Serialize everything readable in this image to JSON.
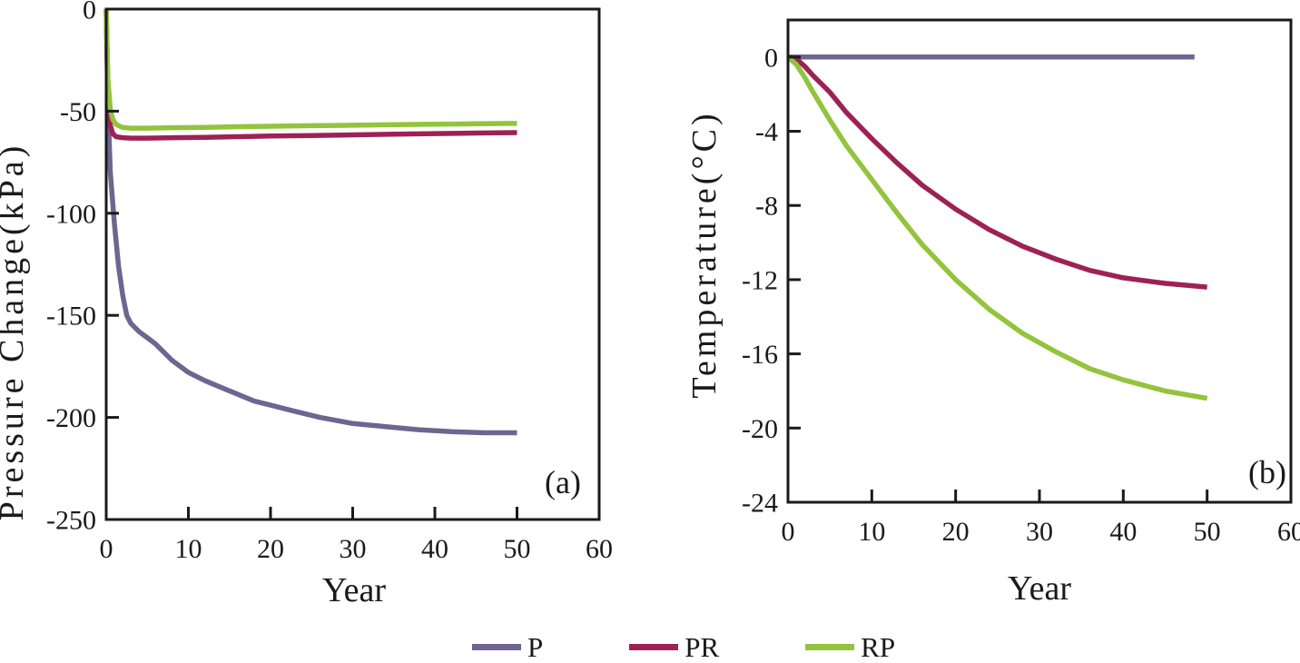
{
  "figure": {
    "background": "#ffffff",
    "axis_color": "#1a1a1a"
  },
  "legend": {
    "items": [
      {
        "label": "P",
        "color": "#6e6590"
      },
      {
        "label": "PR",
        "color": "#9e2155"
      },
      {
        "label": "RP",
        "color": "#92c43c"
      }
    ]
  },
  "chart_data": [
    {
      "id": "a",
      "type": "line",
      "panel_label": "(a)",
      "xlabel": "Year",
      "ylabel": "Pressure Change(kPa)",
      "xlim": [
        0,
        60
      ],
      "ylim": [
        -250,
        0
      ],
      "xtick_values": [
        0,
        10,
        20,
        30,
        40,
        50,
        60
      ],
      "xtick_labels": [
        "0",
        "10",
        "20",
        "30",
        "40",
        "50",
        "60"
      ],
      "ytick_values": [
        0,
        -50,
        -100,
        -150,
        -200,
        -250
      ],
      "ytick_labels": [
        "0",
        "-50",
        "-100",
        "-150",
        "-200",
        "-250"
      ],
      "grid": false,
      "legend_position": "bottom",
      "series": [
        {
          "name": "P",
          "color": "#6e6590",
          "x": [
            0,
            0.2,
            0.5,
            1,
            1.5,
            2,
            2.5,
            3,
            4,
            5,
            6,
            8,
            10,
            12,
            15,
            18,
            20,
            23,
            26,
            30,
            34,
            38,
            42,
            46,
            50
          ],
          "y": [
            0,
            -45,
            -80,
            -105,
            -126,
            -140,
            -150,
            -154,
            -158,
            -161,
            -164,
            -172,
            -178,
            -182,
            -187,
            -192,
            -194,
            -197,
            -200,
            -203,
            -204.5,
            -206,
            -207,
            -207.5,
            -207.5
          ]
        },
        {
          "name": "PR",
          "color": "#9e2155",
          "x": [
            0,
            0.2,
            0.5,
            0.8,
            1.2,
            2,
            3,
            5,
            8,
            12,
            16,
            20,
            25,
            30,
            35,
            40,
            45,
            50
          ],
          "y": [
            0,
            -40,
            -57,
            -61,
            -62.5,
            -63,
            -63.2,
            -63.2,
            -63,
            -62.8,
            -62.5,
            -62.2,
            -61.9,
            -61.6,
            -61.3,
            -61,
            -60.7,
            -60.5
          ]
        },
        {
          "name": "RP",
          "color": "#92c43c",
          "x": [
            0,
            0.2,
            0.5,
            0.8,
            1.2,
            2,
            3,
            5,
            8,
            12,
            16,
            20,
            25,
            30,
            35,
            40,
            45,
            50
          ],
          "y": [
            0,
            -34,
            -49,
            -54,
            -56.5,
            -58,
            -58.3,
            -58.3,
            -58.1,
            -57.9,
            -57.6,
            -57.4,
            -57.1,
            -56.9,
            -56.6,
            -56.4,
            -56.2,
            -56
          ]
        }
      ]
    },
    {
      "id": "b",
      "type": "line",
      "panel_label": "(b)",
      "xlabel": "Year",
      "ylabel": "Temperature(°C)",
      "xlim": [
        0,
        60
      ],
      "ylim": [
        -24,
        2
      ],
      "xtick_values": [
        0,
        10,
        20,
        30,
        40,
        50,
        60
      ],
      "xtick_labels": [
        "0",
        "10",
        "20",
        "30",
        "40",
        "50",
        "60"
      ],
      "ytick_values": [
        0,
        -4,
        -8,
        -12,
        -16,
        -20,
        -24
      ],
      "ytick_labels": [
        "0",
        "-4",
        "-8",
        "-12",
        "-16",
        "-20",
        "-24"
      ],
      "grid": false,
      "legend_position": "bottom",
      "series": [
        {
          "name": "P",
          "color": "#6e6590",
          "x": [
            0,
            48.5
          ],
          "y": [
            0,
            0
          ]
        },
        {
          "name": "PR",
          "color": "#9e2155",
          "x": [
            0,
            1,
            2,
            3,
            5,
            7,
            10,
            13,
            16,
            20,
            24,
            28,
            32,
            36,
            40,
            45,
            50
          ],
          "y": [
            0,
            -0.1,
            -0.5,
            -1,
            -1.9,
            -3,
            -4.4,
            -5.7,
            -6.9,
            -8.2,
            -9.3,
            -10.2,
            -10.9,
            -11.5,
            -11.9,
            -12.2,
            -12.4
          ]
        },
        {
          "name": "RP",
          "color": "#92c43c",
          "x": [
            0,
            1,
            2,
            3,
            5,
            7,
            10,
            13,
            16,
            20,
            24,
            28,
            32,
            36,
            40,
            45,
            50
          ],
          "y": [
            0,
            -0.4,
            -1.1,
            -1.9,
            -3.4,
            -4.8,
            -6.6,
            -8.4,
            -10.1,
            -12,
            -13.6,
            -14.9,
            -15.9,
            -16.8,
            -17.4,
            -18,
            -18.4
          ]
        }
      ]
    }
  ]
}
